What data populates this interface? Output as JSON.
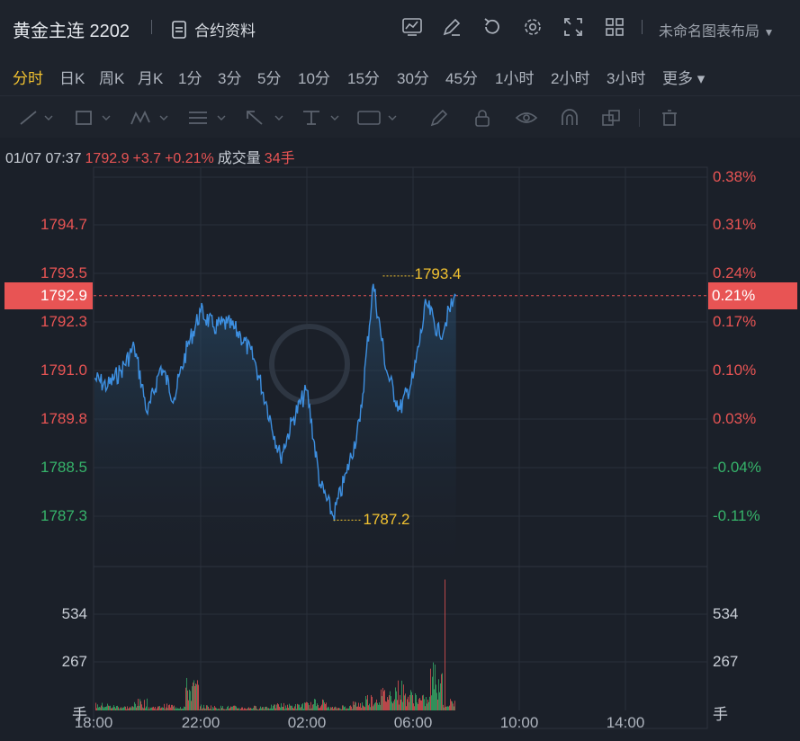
{
  "header": {
    "title": "黄金主连 2202",
    "contract_label": "合约资料",
    "layout_label": "未命名图表布局"
  },
  "timeframes": [
    "分时",
    "日K",
    "周K",
    "月K",
    "1分",
    "3分",
    "5分",
    "10分",
    "15分",
    "30分",
    "45分",
    "1小时",
    "2小时",
    "3小时",
    "更多"
  ],
  "active_timeframe": "分时",
  "info": {
    "time": "01/07 07:37",
    "price": "1792.9",
    "change": "+3.7",
    "change_pct": "+0.21%",
    "volume_label": "成交量",
    "volume_value": "34手"
  },
  "colors": {
    "up": "#e85454",
    "down": "#36b36a",
    "line": "#3d8fe0",
    "highlight": "#f2c230"
  },
  "chart_data": {
    "type": "line",
    "x_ticks": [
      "18:00",
      "22:00",
      "02:00",
      "06:00",
      "10:00",
      "14:00"
    ],
    "price_ticks_left": [
      "1794.7",
      "1793.5",
      "1792.3",
      "1791.0",
      "1789.8",
      "1788.5",
      "1787.3"
    ],
    "pct_ticks_right": [
      "0.38%",
      "0.31%",
      "0.24%",
      "0.17%",
      "0.10%",
      "0.03%",
      "-0.04%",
      "-0.11%"
    ],
    "current_price": "1792.9",
    "current_pct": "0.21%",
    "high_label": "1793.4",
    "low_label": "1787.2",
    "volume_ticks": [
      "534",
      "267",
      "手"
    ],
    "volume_ticks_right": [
      "534",
      "267",
      "手"
    ],
    "series": [
      {
        "x": [
          "18:00",
          "18:30",
          "19:00",
          "19:30",
          "20:00",
          "20:30",
          "21:00",
          "21:30",
          "22:00",
          "22:30",
          "23:00",
          "23:30",
          "00:00",
          "00:30",
          "01:00",
          "01:30",
          "02:00",
          "02:30",
          "03:00",
          "03:30",
          "04:00",
          "04:30",
          "05:00",
          "05:30",
          "06:00",
          "06:30",
          "07:00",
          "07:37"
        ],
        "values": [
          1790.8,
          1790.6,
          1791.0,
          1791.6,
          1789.9,
          1791.1,
          1790.3,
          1791.6,
          1792.5,
          1792.1,
          1792.2,
          1791.9,
          1791.3,
          1790.1,
          1788.8,
          1789.8,
          1790.5,
          1788.1,
          1787.3,
          1788.4,
          1789.7,
          1793.2,
          1791.0,
          1790.0,
          1790.8,
          1792.7,
          1791.9,
          1792.9
        ]
      }
    ],
    "volumes": [
      40,
      30,
      25,
      60,
      25,
      35,
      30,
      170,
      30,
      25,
      25,
      20,
      25,
      30,
      40,
      35,
      45,
      60,
      20,
      30,
      50,
      90,
      120,
      160,
      110,
      80,
      260,
      60
    ]
  }
}
